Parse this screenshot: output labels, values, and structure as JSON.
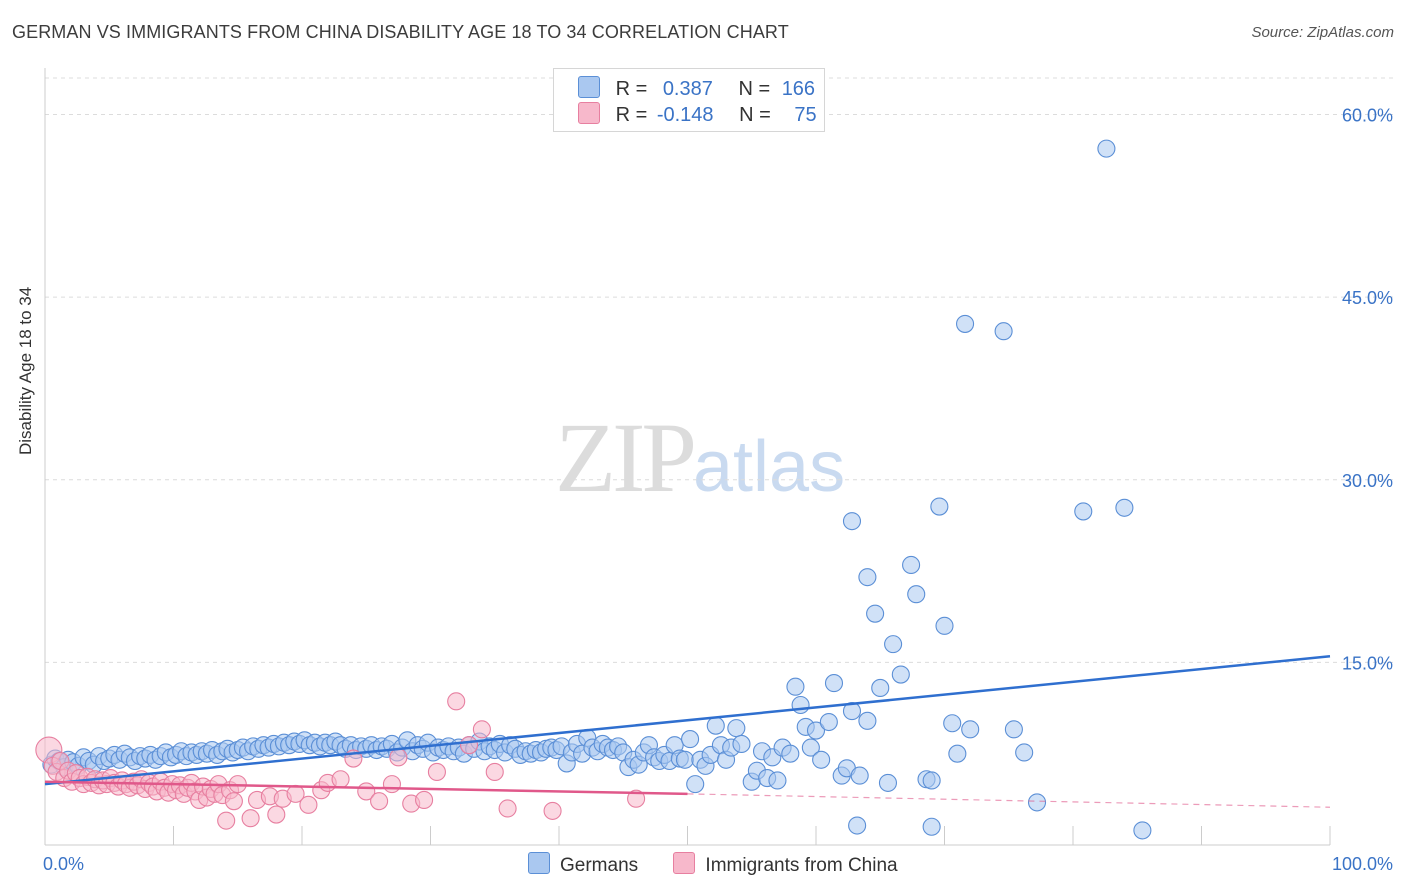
{
  "title": "GERMAN VS IMMIGRANTS FROM CHINA DISABILITY AGE 18 TO 34 CORRELATION CHART",
  "source": "Source: ZipAtlas.com",
  "watermark": {
    "zip": "ZIP",
    "atlas": "atlas"
  },
  "legend": {
    "rows": [
      {
        "r_label": "R =",
        "r_value": "0.387",
        "n_label": "N =",
        "n_value": "166"
      },
      {
        "r_label": "R =",
        "r_value": "-0.148",
        "n_label": "N =",
        "n_value": "75"
      }
    ]
  },
  "colors": {
    "germans_fill": "#aac8f0",
    "germans_stroke": "#5b8fd6",
    "germans_line": "#2f6fcf",
    "china_fill": "#f7b8cb",
    "china_stroke": "#e77fa0",
    "china_line": "#e0588a",
    "tick_text": "#3a73c6",
    "grid": "#dcdcdc"
  },
  "chart_data": {
    "type": "scatter",
    "title": "GERMAN VS IMMIGRANTS FROM CHINA DISABILITY AGE 18 TO 34 CORRELATION CHART",
    "xlabel": "",
    "ylabel": "Disability Age 18 to 34",
    "xlim": [
      0,
      100
    ],
    "ylim": [
      0,
      63
    ],
    "x_ticks": [
      0,
      10,
      20,
      30,
      40,
      50,
      60,
      70,
      80,
      90,
      100
    ],
    "x_tick_labels": {
      "0": "0.0%",
      "100": "100.0%"
    },
    "y_ticks": [
      15,
      30,
      45,
      60
    ],
    "y_tick_labels": [
      "15.0%",
      "30.0%",
      "45.0%",
      "60.0%"
    ],
    "series": [
      {
        "name": "Germans",
        "R": 0.387,
        "N": 166,
        "trend": {
          "x0": 0,
          "y0": 5.0,
          "x1": 100,
          "y1": 15.5
        },
        "points": [
          [
            0.5,
            6.6
          ],
          [
            0.8,
            7.1
          ],
          [
            1.1,
            6.9
          ],
          [
            1.5,
            6.4
          ],
          [
            1.8,
            7.0
          ],
          [
            2.2,
            6.8
          ],
          [
            2.6,
            6.5
          ],
          [
            3.0,
            7.2
          ],
          [
            3.4,
            6.9
          ],
          [
            3.8,
            6.6
          ],
          [
            4.2,
            7.3
          ],
          [
            4.6,
            6.9
          ],
          [
            5.0,
            7.1
          ],
          [
            5.4,
            7.4
          ],
          [
            5.8,
            7.0
          ],
          [
            6.2,
            7.5
          ],
          [
            6.6,
            7.2
          ],
          [
            7.0,
            6.9
          ],
          [
            7.4,
            7.3
          ],
          [
            7.8,
            7.1
          ],
          [
            8.2,
            7.4
          ],
          [
            8.6,
            7.0
          ],
          [
            9.0,
            7.3
          ],
          [
            9.4,
            7.6
          ],
          [
            9.8,
            7.2
          ],
          [
            10.2,
            7.4
          ],
          [
            10.6,
            7.7
          ],
          [
            11.0,
            7.3
          ],
          [
            11.4,
            7.6
          ],
          [
            11.8,
            7.4
          ],
          [
            12.2,
            7.7
          ],
          [
            12.6,
            7.5
          ],
          [
            13.0,
            7.8
          ],
          [
            13.4,
            7.4
          ],
          [
            13.8,
            7.7
          ],
          [
            14.2,
            7.9
          ],
          [
            14.6,
            7.6
          ],
          [
            15.0,
            7.8
          ],
          [
            15.4,
            8.0
          ],
          [
            15.8,
            7.7
          ],
          [
            16.2,
            8.1
          ],
          [
            16.6,
            7.9
          ],
          [
            17.0,
            8.2
          ],
          [
            17.4,
            8.0
          ],
          [
            17.8,
            8.3
          ],
          [
            18.2,
            8.1
          ],
          [
            18.6,
            8.4
          ],
          [
            19.0,
            8.2
          ],
          [
            19.4,
            8.5
          ],
          [
            19.8,
            8.3
          ],
          [
            20.2,
            8.6
          ],
          [
            20.6,
            8.2
          ],
          [
            21.0,
            8.4
          ],
          [
            21.4,
            8.1
          ],
          [
            21.8,
            8.4
          ],
          [
            22.2,
            8.2
          ],
          [
            22.6,
            8.5
          ],
          [
            23.0,
            8.2
          ],
          [
            23.4,
            7.9
          ],
          [
            23.8,
            8.2
          ],
          [
            24.2,
            7.8
          ],
          [
            24.6,
            8.1
          ],
          [
            25.0,
            7.9
          ],
          [
            25.4,
            8.2
          ],
          [
            25.8,
            7.8
          ],
          [
            26.2,
            8.1
          ],
          [
            26.6,
            7.9
          ],
          [
            27.0,
            8.3
          ],
          [
            27.4,
            7.6
          ],
          [
            27.8,
            8.0
          ],
          [
            28.2,
            8.6
          ],
          [
            28.6,
            7.7
          ],
          [
            29.0,
            8.2
          ],
          [
            29.4,
            7.9
          ],
          [
            29.8,
            8.4
          ],
          [
            30.2,
            7.6
          ],
          [
            30.6,
            8.0
          ],
          [
            31.0,
            7.8
          ],
          [
            31.4,
            8.1
          ],
          [
            31.8,
            7.7
          ],
          [
            32.2,
            8.0
          ],
          [
            32.6,
            7.5
          ],
          [
            33.0,
            8.2
          ],
          [
            33.4,
            7.9
          ],
          [
            33.8,
            8.5
          ],
          [
            34.2,
            7.7
          ],
          [
            34.6,
            8.1
          ],
          [
            35.0,
            7.8
          ],
          [
            35.4,
            8.3
          ],
          [
            35.8,
            7.6
          ],
          [
            36.2,
            8.2
          ],
          [
            36.6,
            7.9
          ],
          [
            37.0,
            7.4
          ],
          [
            37.4,
            7.7
          ],
          [
            37.8,
            7.5
          ],
          [
            38.2,
            7.8
          ],
          [
            38.6,
            7.6
          ],
          [
            39.0,
            7.9
          ],
          [
            39.4,
            8.0
          ],
          [
            39.8,
            7.8
          ],
          [
            40.2,
            8.1
          ],
          [
            40.6,
            6.7
          ],
          [
            41.0,
            7.6
          ],
          [
            41.4,
            8.3
          ],
          [
            41.8,
            7.5
          ],
          [
            42.2,
            8.8
          ],
          [
            42.6,
            8.0
          ],
          [
            43.0,
            7.7
          ],
          [
            43.4,
            8.3
          ],
          [
            43.8,
            8.0
          ],
          [
            44.2,
            7.8
          ],
          [
            44.6,
            8.1
          ],
          [
            45.0,
            7.6
          ],
          [
            45.4,
            6.4
          ],
          [
            45.8,
            7.0
          ],
          [
            46.2,
            6.6
          ],
          [
            46.6,
            7.6
          ],
          [
            47.0,
            8.2
          ],
          [
            47.4,
            7.2
          ],
          [
            47.8,
            6.9
          ],
          [
            48.2,
            7.4
          ],
          [
            48.6,
            6.9
          ],
          [
            49.0,
            8.2
          ],
          [
            49.4,
            7.1
          ],
          [
            49.8,
            7.0
          ],
          [
            50.2,
            8.7
          ],
          [
            50.6,
            5.0
          ],
          [
            51.0,
            7.0
          ],
          [
            51.4,
            6.5
          ],
          [
            51.8,
            7.4
          ],
          [
            52.2,
            9.8
          ],
          [
            52.6,
            8.2
          ],
          [
            53.0,
            7.0
          ],
          [
            53.4,
            8.0
          ],
          [
            53.8,
            9.6
          ],
          [
            54.2,
            8.3
          ],
          [
            55.0,
            5.2
          ],
          [
            55.4,
            6.1
          ],
          [
            55.8,
            7.7
          ],
          [
            56.2,
            5.5
          ],
          [
            56.6,
            7.2
          ],
          [
            57.0,
            5.3
          ],
          [
            57.4,
            8.0
          ],
          [
            58.0,
            7.5
          ],
          [
            58.4,
            13.0
          ],
          [
            58.8,
            11.5
          ],
          [
            59.2,
            9.7
          ],
          [
            59.6,
            8.0
          ],
          [
            60.0,
            9.4
          ],
          [
            60.4,
            7.0
          ],
          [
            61.0,
            10.1
          ],
          [
            61.4,
            13.3
          ],
          [
            62.0,
            5.7
          ],
          [
            62.4,
            6.3
          ],
          [
            62.8,
            11.0
          ],
          [
            63.4,
            5.7
          ],
          [
            64.0,
            10.2
          ],
          [
            65.0,
            12.9
          ],
          [
            65.6,
            5.1
          ],
          [
            66.0,
            16.5
          ],
          [
            64.6,
            19.0
          ],
          [
            64.0,
            22.0
          ],
          [
            66.6,
            14.0
          ],
          [
            67.4,
            23.0
          ],
          [
            67.8,
            20.6
          ],
          [
            68.6,
            5.4
          ],
          [
            69.0,
            5.3
          ],
          [
            69.6,
            27.8
          ],
          [
            70.0,
            18.0
          ],
          [
            71.0,
            7.5
          ],
          [
            71.6,
            42.8
          ],
          [
            72.0,
            9.5
          ],
          [
            74.6,
            42.2
          ],
          [
            75.4,
            9.5
          ],
          [
            76.2,
            7.6
          ],
          [
            77.2,
            3.5
          ],
          [
            80.8,
            27.4
          ],
          [
            82.6,
            57.2
          ],
          [
            84.0,
            27.7
          ],
          [
            85.4,
            1.2
          ],
          [
            70.6,
            10.0
          ],
          [
            62.8,
            26.6
          ],
          [
            63.2,
            1.6
          ],
          [
            69.0,
            1.5
          ]
        ]
      },
      {
        "name": "Immigrants from China",
        "R": -0.148,
        "N": 75,
        "trend": {
          "x0": 0,
          "y0": 5.2,
          "x1": 50,
          "y1": 4.2,
          "dash_x1": 100,
          "dash_y1": 3.1
        },
        "points": [
          [
            0.3,
            7.8
          ],
          [
            0.6,
            6.5
          ],
          [
            0.9,
            6.0
          ],
          [
            1.2,
            6.9
          ],
          [
            1.5,
            5.5
          ],
          [
            1.8,
            6.1
          ],
          [
            2.1,
            5.2
          ],
          [
            2.4,
            5.9
          ],
          [
            2.7,
            5.5
          ],
          [
            3.0,
            5.0
          ],
          [
            3.3,
            5.6
          ],
          [
            3.6,
            5.1
          ],
          [
            3.9,
            5.4
          ],
          [
            4.2,
            4.9
          ],
          [
            4.5,
            5.3
          ],
          [
            4.8,
            5.0
          ],
          [
            5.1,
            5.5
          ],
          [
            5.4,
            5.1
          ],
          [
            5.7,
            4.8
          ],
          [
            6.0,
            5.3
          ],
          [
            6.3,
            5.0
          ],
          [
            6.6,
            4.7
          ],
          [
            6.9,
            5.2
          ],
          [
            7.2,
            4.9
          ],
          [
            7.5,
            5.4
          ],
          [
            7.8,
            4.6
          ],
          [
            8.1,
            5.1
          ],
          [
            8.4,
            4.8
          ],
          [
            8.7,
            4.4
          ],
          [
            9.0,
            5.2
          ],
          [
            9.3,
            4.7
          ],
          [
            9.6,
            4.3
          ],
          [
            9.9,
            5.0
          ],
          [
            10.2,
            4.5
          ],
          [
            10.5,
            4.9
          ],
          [
            10.8,
            4.2
          ],
          [
            11.1,
            4.7
          ],
          [
            11.4,
            5.1
          ],
          [
            11.7,
            4.4
          ],
          [
            12.0,
            3.7
          ],
          [
            12.3,
            4.8
          ],
          [
            12.6,
            3.9
          ],
          [
            12.9,
            4.6
          ],
          [
            13.2,
            4.2
          ],
          [
            13.5,
            5.0
          ],
          [
            13.8,
            4.1
          ],
          [
            14.1,
            2.0
          ],
          [
            14.4,
            4.5
          ],
          [
            14.7,
            3.6
          ],
          [
            15.0,
            5.0
          ],
          [
            16.0,
            2.2
          ],
          [
            16.5,
            3.7
          ],
          [
            17.5,
            4.0
          ],
          [
            18.0,
            2.5
          ],
          [
            18.5,
            3.8
          ],
          [
            19.5,
            4.2
          ],
          [
            20.5,
            3.3
          ],
          [
            21.5,
            4.5
          ],
          [
            22.0,
            5.1
          ],
          [
            23.0,
            5.4
          ],
          [
            24.0,
            7.1
          ],
          [
            25.0,
            4.4
          ],
          [
            26.0,
            3.6
          ],
          [
            27.0,
            5.0
          ],
          [
            27.5,
            7.2
          ],
          [
            28.5,
            3.4
          ],
          [
            29.5,
            3.7
          ],
          [
            30.5,
            6.0
          ],
          [
            32.0,
            11.8
          ],
          [
            33.0,
            8.2
          ],
          [
            34.0,
            9.5
          ],
          [
            35.0,
            6.0
          ],
          [
            36.0,
            3.0
          ],
          [
            39.5,
            2.8
          ],
          [
            46.0,
            3.8
          ]
        ]
      }
    ]
  },
  "bottom_legend": [
    {
      "label": "Germans"
    },
    {
      "label": "Immigrants from China"
    }
  ]
}
